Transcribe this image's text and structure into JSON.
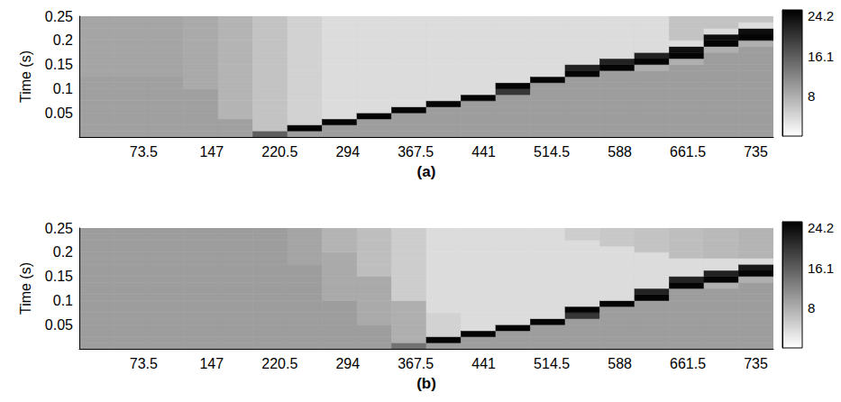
{
  "chart_data": [
    {
      "type": "heatmap",
      "title": "(a)",
      "y_label": "Time (s)",
      "x": [
        22.75,
        60.25,
        97.75,
        135.25,
        172.75,
        210.25,
        247.75,
        285.25,
        322.75,
        360.25,
        397.75,
        435.25,
        472.75,
        510.25,
        547.75,
        585.25,
        622.75,
        660.25,
        697.75,
        735.25
      ],
      "y": [
        0.00625,
        0.01875,
        0.03125,
        0.04375,
        0.05625,
        0.06875,
        0.08125,
        0.09375,
        0.10625,
        0.11875,
        0.13125,
        0.14375,
        0.15625,
        0.16875,
        0.18125,
        0.19375,
        0.20625,
        0.21875,
        0.23125,
        0.24375
      ],
      "z": [
        [
          9.5,
          9.5,
          9.5,
          9.5,
          9.5,
          9.5,
          9.5,
          9.5,
          9.5,
          9.5,
          9,
          9,
          9,
          9,
          9,
          9,
          9,
          9,
          9,
          9
        ],
        [
          9.5,
          9.5,
          9.5,
          9.5,
          9.5,
          9.5,
          9.5,
          9.5,
          9.5,
          9.5,
          9,
          9,
          9,
          9,
          9,
          9,
          9,
          9,
          9,
          9
        ],
        [
          9.5,
          9.5,
          9.5,
          9.5,
          9.5,
          9.5,
          9.5,
          9.5,
          9.5,
          9.5,
          9,
          9,
          9,
          9,
          9,
          9,
          9,
          9,
          9,
          9
        ],
        [
          9.5,
          9.5,
          9.5,
          9.5,
          9.5,
          9.5,
          9.5,
          9.5,
          8.5,
          8.5,
          8.5,
          8.5,
          8.5,
          8.5,
          8.5,
          8.5,
          8.5,
          8.5,
          8.5,
          8.5
        ],
        [
          9.5,
          9.5,
          9.5,
          7.5,
          7.5,
          7.5,
          7.5,
          7.5,
          7.5,
          7.5,
          7.5,
          7.5,
          7.5,
          7.5,
          7.5,
          7.5,
          7.5,
          7.5,
          7.5,
          7.5
        ],
        [
          16,
          6,
          6,
          6,
          6,
          6,
          6,
          6,
          6,
          6,
          6,
          6,
          6,
          6,
          6,
          6,
          6,
          6,
          6,
          6
        ],
        [
          9.8,
          25,
          4.5,
          4.5,
          4.5,
          4.5,
          4.5,
          4.5,
          4.5,
          4.5,
          4.5,
          4.5,
          4.5,
          4.5,
          4.5,
          4.5,
          4.5,
          4.5,
          4.5,
          4.5
        ],
        [
          9.8,
          9.8,
          25,
          3.5,
          3.5,
          3.5,
          3.5,
          3.5,
          3.5,
          3.5,
          3.5,
          3.5,
          3.5,
          3.5,
          3.5,
          3.5,
          3.5,
          3.5,
          3.5,
          3.5
        ],
        [
          9.8,
          9.8,
          9.8,
          25,
          3.5,
          3.5,
          3.5,
          3.5,
          3.5,
          3.5,
          3.5,
          3.5,
          3.5,
          3.5,
          3.5,
          3.5,
          3.5,
          3.5,
          3.5,
          3.5
        ],
        [
          9.8,
          9.8,
          9.8,
          9.8,
          25,
          3.5,
          3.5,
          3.5,
          3.5,
          3.5,
          3.5,
          3.5,
          3.5,
          3.5,
          3.5,
          3.5,
          3.5,
          3.5,
          3.5,
          3.5
        ],
        [
          9.8,
          9.8,
          9.8,
          9.8,
          9.8,
          25,
          3.5,
          3.5,
          3.5,
          3.5,
          3.5,
          3.5,
          3.5,
          3.5,
          3.5,
          3.5,
          3.5,
          3.5,
          3.5,
          3.5
        ],
        [
          9.8,
          9.8,
          9.8,
          9.8,
          9.8,
          9.8,
          25,
          3.5,
          3.5,
          3.5,
          3.5,
          3.5,
          3.5,
          3.5,
          3.5,
          3.5,
          3.5,
          3.5,
          3.5,
          3.5
        ],
        [
          9.8,
          9.8,
          9.8,
          9.8,
          9.8,
          9.8,
          9.8,
          20,
          25,
          3.5,
          3.5,
          3.5,
          3.5,
          3.5,
          3.5,
          3.5,
          3.5,
          3.5,
          3.5,
          3.5
        ],
        [
          9.8,
          9.8,
          9.8,
          9.8,
          9.8,
          9.8,
          9.8,
          9.8,
          9.8,
          25,
          3.5,
          3.5,
          3.5,
          3.5,
          3.5,
          3.5,
          3.5,
          3.5,
          3.5,
          3.5
        ],
        [
          9.8,
          9.8,
          9.8,
          9.8,
          9.8,
          9.8,
          9.8,
          9.8,
          9.8,
          9.8,
          25,
          22,
          3.5,
          3.5,
          3.5,
          3.5,
          3.5,
          3.5,
          3.5,
          3.5
        ],
        [
          9.8,
          9.8,
          9.8,
          9.8,
          9.8,
          9.8,
          9.8,
          9.8,
          9.8,
          9.8,
          9.8,
          25,
          22,
          3.5,
          3.5,
          3.5,
          3.5,
          3.5,
          3.5,
          3.5
        ],
        [
          9.8,
          9.8,
          9.8,
          9.8,
          9.8,
          9.8,
          9.8,
          9.8,
          9.8,
          9.8,
          9.8,
          8,
          25,
          22,
          3.5,
          3.5,
          3.5,
          3.5,
          3.5,
          3.5
        ],
        [
          9.8,
          9.8,
          9.8,
          9.8,
          9.8,
          9.8,
          9.8,
          9.8,
          9.8,
          9.8,
          9.8,
          9.8,
          8,
          25,
          24,
          3.5,
          6,
          6,
          6,
          6
        ],
        [
          9.8,
          9.8,
          9.8,
          9.8,
          9.8,
          9.8,
          9.8,
          9.8,
          9.8,
          9.8,
          9.8,
          9.8,
          9.8,
          9.8,
          8,
          25,
          24,
          3.5,
          6,
          6
        ],
        [
          9.8,
          9.8,
          9.8,
          9.8,
          9.8,
          9.8,
          9.8,
          9.8,
          9.8,
          9.8,
          9.8,
          9.8,
          9.8,
          9.8,
          9.8,
          8,
          25,
          24,
          3.5,
          6
        ]
      ],
      "xlim": [
        4,
        754
      ],
      "xticks": [
        73.5,
        147,
        220.5,
        294,
        367.5,
        441,
        514.5,
        588,
        661.5,
        735
      ],
      "ylim": [
        0,
        0.25
      ],
      "yticks": [
        0.05,
        0.1,
        0.15,
        0.2,
        0.25
      ],
      "clim": [
        0,
        25.4
      ],
      "cticks": [
        8,
        16.1,
        24.2
      ]
    },
    {
      "type": "heatmap",
      "title": "(b)",
      "y_label": "Time (s)",
      "x": [
        22.75,
        60.25,
        97.75,
        135.25,
        172.75,
        210.25,
        247.75,
        285.25,
        322.75,
        360.25,
        397.75,
        435.25,
        472.75,
        510.25,
        547.75,
        585.25,
        622.75,
        660.25,
        697.75,
        735.25
      ],
      "y": [
        0.00625,
        0.01875,
        0.03125,
        0.04375,
        0.05625,
        0.06875,
        0.08125,
        0.09375,
        0.10625,
        0.11875,
        0.13125,
        0.14375,
        0.15625,
        0.16875,
        0.18125,
        0.19375,
        0.20625,
        0.21875,
        0.23125,
        0.24375
      ],
      "z": [
        [
          9.8,
          9.8,
          9.8,
          9.8,
          9.8,
          9.8,
          9.8,
          9.8,
          9.8,
          9.8,
          9.8,
          9.8,
          9.8,
          9.8,
          9.8,
          9.8,
          9.8,
          9.8,
          9.8,
          9.8
        ],
        [
          9.8,
          9.8,
          9.8,
          9.8,
          9.8,
          9.8,
          9.8,
          9.8,
          9.8,
          9.8,
          9.8,
          9.8,
          9.8,
          9.8,
          9.8,
          9.8,
          9.8,
          9.8,
          9.8,
          9.8
        ],
        [
          9.8,
          9.8,
          9.8,
          9.8,
          9.8,
          9.8,
          9.8,
          9.8,
          9.8,
          9.8,
          9.8,
          9.8,
          9.8,
          9.8,
          9.8,
          9.8,
          9.8,
          9.8,
          9.8,
          9.8
        ],
        [
          9.8,
          9.8,
          9.8,
          9.8,
          9.8,
          9.8,
          9.8,
          9.8,
          9.8,
          9.8,
          9.8,
          9.8,
          9.8,
          9.8,
          9.8,
          9.8,
          9.8,
          9.8,
          9.8,
          9.8
        ],
        [
          9.8,
          9.8,
          9.8,
          9.8,
          9.8,
          9.8,
          9.8,
          9.8,
          9.8,
          9.8,
          9.8,
          9.8,
          9.8,
          9.8,
          9.8,
          9.8,
          9.8,
          9.8,
          9.8,
          9.8
        ],
        [
          9.8,
          9.8,
          9.8,
          9.8,
          9.8,
          9.8,
          9.8,
          9.8,
          9.8,
          9.8,
          9.8,
          9.8,
          9.8,
          9.8,
          9.8,
          9.8,
          9.8,
          9.8,
          9.8,
          9.8
        ],
        [
          9.8,
          9.8,
          9.8,
          9.8,
          9.8,
          9.8,
          9.8,
          9.8,
          9.8,
          9.8,
          9.8,
          9.8,
          9.8,
          9.8,
          9,
          9,
          9,
          9,
          9,
          9
        ],
        [
          9.8,
          9.8,
          9.8,
          9.8,
          9.8,
          9.8,
          9.8,
          9.8,
          8.5,
          8.5,
          8.5,
          8.5,
          8.5,
          8.5,
          8.5,
          8.5,
          7.5,
          7.5,
          7.5,
          7.5
        ],
        [
          9.8,
          9.8,
          9.8,
          9.8,
          8.5,
          8.5,
          8.5,
          8.5,
          8.5,
          8.5,
          8.5,
          8.5,
          6.5,
          6.5,
          6.5,
          6.5,
          6.5,
          6.5,
          6.5,
          6.5
        ],
        [
          14,
          8,
          8,
          8,
          8,
          8,
          8,
          8,
          5,
          5,
          5,
          5,
          5,
          5,
          5,
          5,
          5,
          5,
          5,
          5
        ],
        [
          9.8,
          25,
          4.5,
          4.5,
          4.5,
          4.5,
          3.5,
          3.5,
          3.5,
          3.5,
          3.5,
          3.5,
          3.5,
          3.5,
          3.5,
          3.5,
          3.5,
          3.5,
          3.5,
          3.5
        ],
        [
          9.8,
          9.8,
          25,
          3.5,
          3.5,
          3.5,
          3.5,
          3.5,
          3.5,
          3.5,
          3.5,
          3.5,
          3.5,
          3.5,
          3.5,
          3.5,
          3.5,
          3.5,
          3.5,
          3.5
        ],
        [
          9.8,
          9.8,
          9.8,
          25,
          3.5,
          3.5,
          3.5,
          3.5,
          3.5,
          3.5,
          3.5,
          3.5,
          3.5,
          3.5,
          3.5,
          3.5,
          3.5,
          3.5,
          3.5,
          3.5
        ],
        [
          9.8,
          9.8,
          9.8,
          9.8,
          25,
          3.5,
          3.5,
          3.5,
          3.5,
          3.5,
          3.5,
          3.5,
          3.5,
          3.5,
          3.5,
          3.5,
          3.5,
          3.5,
          3.5,
          3.5
        ],
        [
          9.8,
          9.8,
          9.8,
          9.8,
          9.8,
          20,
          25,
          3.5,
          3.5,
          3.5,
          3.5,
          3.5,
          3.5,
          3.5,
          3.5,
          3.5,
          3.5,
          3.5,
          5,
          5
        ],
        [
          9.8,
          9.8,
          9.8,
          9.8,
          9.8,
          9.8,
          9.8,
          25,
          3.5,
          3.5,
          3.5,
          3.5,
          3.5,
          3.5,
          3.5,
          3.5,
          3.5,
          5.5,
          5.5,
          5.5
        ],
        [
          9.8,
          9.8,
          9.8,
          9.8,
          9.8,
          9.8,
          9.8,
          9.8,
          25,
          22,
          3.5,
          3.5,
          3.5,
          3.5,
          3.5,
          3.5,
          6,
          6,
          6,
          6
        ],
        [
          9.8,
          9.8,
          9.8,
          9.8,
          9.8,
          9.8,
          9.8,
          9.8,
          9.8,
          9.8,
          25,
          22,
          3.5,
          3.5,
          3.5,
          6.5,
          6.5,
          6.5,
          6.5,
          6.5
        ],
        [
          9.8,
          9.8,
          9.8,
          9.8,
          9.8,
          9.8,
          9.8,
          9.8,
          9.8,
          9.8,
          8,
          25,
          22,
          3.5,
          3.5,
          7,
          7,
          7,
          7,
          7
        ],
        [
          9.8,
          9.8,
          9.8,
          9.8,
          9.8,
          9.8,
          9.8,
          9.8,
          9.8,
          9.8,
          9.8,
          8,
          25,
          23,
          3.5,
          7.5,
          7.5,
          7.5,
          7.5,
          7.5
        ]
      ],
      "xlim": [
        4,
        754
      ],
      "xticks": [
        73.5,
        147,
        220.5,
        294,
        367.5,
        441,
        514.5,
        588,
        661.5,
        735
      ],
      "ylim": [
        0,
        0.25
      ],
      "yticks": [
        0.05,
        0.1,
        0.15,
        0.2,
        0.25
      ],
      "clim": [
        0,
        25.4
      ],
      "cticks": [
        8,
        16.1,
        24.2
      ]
    }
  ]
}
